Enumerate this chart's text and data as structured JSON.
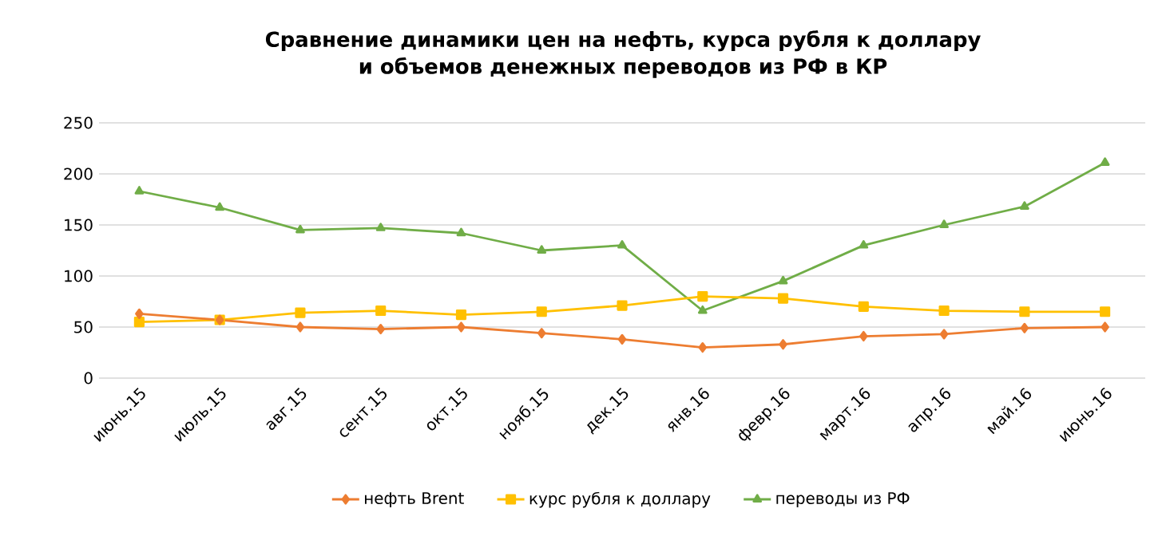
{
  "chart_data": {
    "type": "line",
    "title": "Сравнение динамики цен на нефть, курса рубля к доллару\nи объемов денежных переводов из РФ в КР",
    "categories": [
      "июнь.15",
      "июль.15",
      "авг.15",
      "сент.15",
      "окт.15",
      "нояб.15",
      "дек.15",
      "янв.16",
      "февр.16",
      "март.16",
      "апр.16",
      "май.16",
      "июнь.16"
    ],
    "series": [
      {
        "name": "нефть Brent",
        "color": "#ed7d31",
        "marker": "diamond",
        "values": [
          63,
          57,
          50,
          48,
          50,
          44,
          38,
          30,
          33,
          41,
          43,
          49,
          50
        ]
      },
      {
        "name": "курс рубля к доллару",
        "color": "#ffc000",
        "marker": "square",
        "values": [
          55,
          57,
          64,
          66,
          62,
          65,
          71,
          80,
          78,
          70,
          66,
          65,
          65
        ]
      },
      {
        "name": "переводы из РФ",
        "color": "#70ad47",
        "marker": "triangle",
        "values": [
          183,
          167,
          145,
          147,
          142,
          125,
          130,
          66,
          95,
          130,
          150,
          168,
          211
        ]
      }
    ],
    "ylim": [
      0,
      250
    ],
    "yticks": [
      0,
      50,
      100,
      150,
      200,
      250
    ],
    "grid": "y",
    "legend": "bottom",
    "line_style": "solid"
  }
}
